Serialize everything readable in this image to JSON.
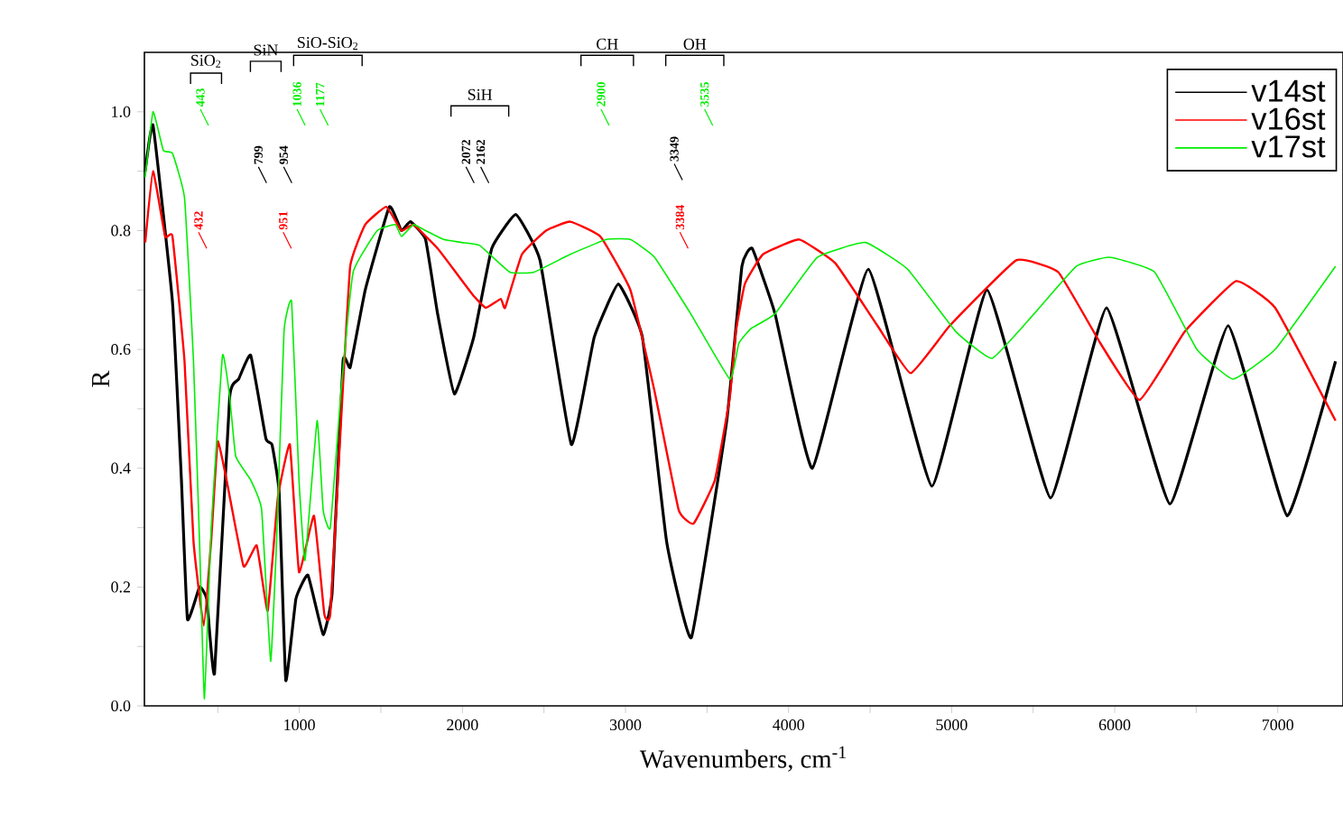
{
  "chart_data": {
    "type": "line",
    "xlabel": "Wavenumbers, cm$^{-1}$",
    "ylabel": "R",
    "xlim": [
      50,
      7400
    ],
    "ylim": [
      0,
      1.1
    ],
    "xticks": [
      {
        "value": 500,
        "label": null
      },
      1000,
      {
        "value": 1500,
        "label": null
      },
      2000,
      {
        "value": 2500,
        "label": null
      },
      3000,
      {
        "value": 3500,
        "label": null
      },
      4000,
      {
        "value": 4500,
        "label": null
      },
      5000,
      {
        "value": 5500,
        "label": null
      },
      6000,
      {
        "value": 6500,
        "label": null
      },
      7000
    ],
    "yticks": [
      {
        "value": 0,
        "label": "0.0"
      },
      {
        "value": 0.1,
        "label": null
      },
      {
        "value": 0.2,
        "label": "0.2"
      },
      {
        "value": 0.3,
        "label": null
      },
      {
        "value": 0.4,
        "label": "0.4"
      },
      {
        "value": 0.5,
        "label": null
      },
      {
        "value": 0.6,
        "label": "0.6"
      },
      {
        "value": 0.7,
        "label": null
      },
      {
        "value": 0.8,
        "label": "0.8"
      },
      {
        "value": 0.9,
        "label": null
      },
      {
        "value": 1.0,
        "label": "1.0"
      }
    ],
    "grid": false,
    "legend": "top right",
    "marker": "none",
    "line_style": "solid",
    "series": [
      {
        "name": "v14st",
        "color": "#000000",
        "x": [
          55,
          103,
          222,
          277,
          314,
          388,
          432,
          480,
          573,
          628,
          702,
          795,
          832,
          876,
          917,
          979,
          1053,
          1146,
          1201,
          1268,
          1312,
          1404,
          1552,
          1626,
          1681,
          1774,
          1848,
          1951,
          2069,
          2180,
          2328,
          2476,
          2668,
          2808,
          2956,
          3104,
          3252,
          3404,
          3621,
          3714,
          3777,
          3917,
          4146,
          4490,
          4878,
          5218,
          5606,
          5950,
          6338,
          6696,
          7058,
          7354
        ],
        "values": [
          0.9,
          0.977,
          0.68,
          0.38,
          0.146,
          0.2,
          0.18,
          0.055,
          0.52,
          0.55,
          0.59,
          0.45,
          0.44,
          0.36,
          0.043,
          0.18,
          0.22,
          0.12,
          0.19,
          0.58,
          0.57,
          0.7,
          0.84,
          0.8,
          0.815,
          0.785,
          0.66,
          0.525,
          0.62,
          0.77,
          0.827,
          0.75,
          0.44,
          0.62,
          0.71,
          0.62,
          0.277,
          0.115,
          0.48,
          0.74,
          0.77,
          0.66,
          0.4,
          0.735,
          0.37,
          0.7,
          0.35,
          0.67,
          0.34,
          0.64,
          0.32,
          0.58
        ]
      },
      {
        "name": "v16st",
        "color": "#ff0000",
        "x": [
          55,
          103,
          177,
          222,
          296,
          351,
          414,
          460,
          499,
          554,
          658,
          739,
          806,
          868,
          942,
          998,
          1090,
          1153,
          1190,
          1256,
          1312,
          1404,
          1533,
          1626,
          1700,
          1848,
          1959,
          2069,
          2143,
          2236,
          2262,
          2365,
          2513,
          2661,
          2846,
          3030,
          3178,
          3326,
          3418,
          3548,
          3640,
          3677,
          3732,
          3843,
          4065,
          4287,
          4545,
          4749,
          4989,
          5396,
          5654,
          5913,
          6153,
          6430,
          6744,
          6984,
          7354
        ],
        "values": [
          0.78,
          0.9,
          0.79,
          0.79,
          0.58,
          0.277,
          0.135,
          0.28,
          0.445,
          0.38,
          0.235,
          0.27,
          0.16,
          0.35,
          0.44,
          0.225,
          0.32,
          0.155,
          0.155,
          0.48,
          0.74,
          0.81,
          0.84,
          0.8,
          0.81,
          0.77,
          0.73,
          0.69,
          0.67,
          0.685,
          0.67,
          0.76,
          0.8,
          0.815,
          0.79,
          0.7,
          0.53,
          0.33,
          0.307,
          0.38,
          0.52,
          0.63,
          0.71,
          0.76,
          0.785,
          0.745,
          0.64,
          0.56,
          0.64,
          0.75,
          0.73,
          0.61,
          0.515,
          0.63,
          0.715,
          0.67,
          0.48
        ]
      },
      {
        "name": "v17st",
        "color": "#00ee00",
        "x": [
          55,
          103,
          166,
          222,
          296,
          351,
          388,
          418,
          460,
          529,
          573,
          610,
          702,
          769,
          824,
          861,
          906,
          953,
          998,
          1035,
          1109,
          1146,
          1190,
          1256,
          1330,
          1478,
          1589,
          1626,
          1700,
          1774,
          1885,
          1996,
          2106,
          2291,
          2439,
          2661,
          2883,
          3030,
          3178,
          3400,
          3640,
          3695,
          3769,
          3917,
          4176,
          4471,
          4730,
          5026,
          5248,
          5506,
          5765,
          5968,
          6245,
          6504,
          6726,
          6984,
          7354
        ],
        "values": [
          0.89,
          1.0,
          0.935,
          0.93,
          0.855,
          0.58,
          0.277,
          0.012,
          0.3,
          0.59,
          0.52,
          0.42,
          0.38,
          0.33,
          0.075,
          0.28,
          0.63,
          0.68,
          0.38,
          0.245,
          0.48,
          0.33,
          0.3,
          0.53,
          0.73,
          0.8,
          0.81,
          0.79,
          0.81,
          0.8,
          0.785,
          0.78,
          0.775,
          0.73,
          0.73,
          0.76,
          0.785,
          0.785,
          0.755,
          0.66,
          0.55,
          0.61,
          0.635,
          0.66,
          0.755,
          0.78,
          0.735,
          0.63,
          0.585,
          0.66,
          0.74,
          0.755,
          0.73,
          0.6,
          0.55,
          0.6,
          0.74
        ]
      }
    ],
    "annotations": [
      "SiO$_{2}$",
      "SiN",
      "SiO-SiO$_{2}$",
      "SiH",
      "CH",
      "OH",
      "443",
      "432",
      "799",
      "954",
      "951",
      "1036",
      "1177",
      "2072",
      "2162",
      "2900",
      "3349",
      "3384",
      "3535"
    ]
  }
}
